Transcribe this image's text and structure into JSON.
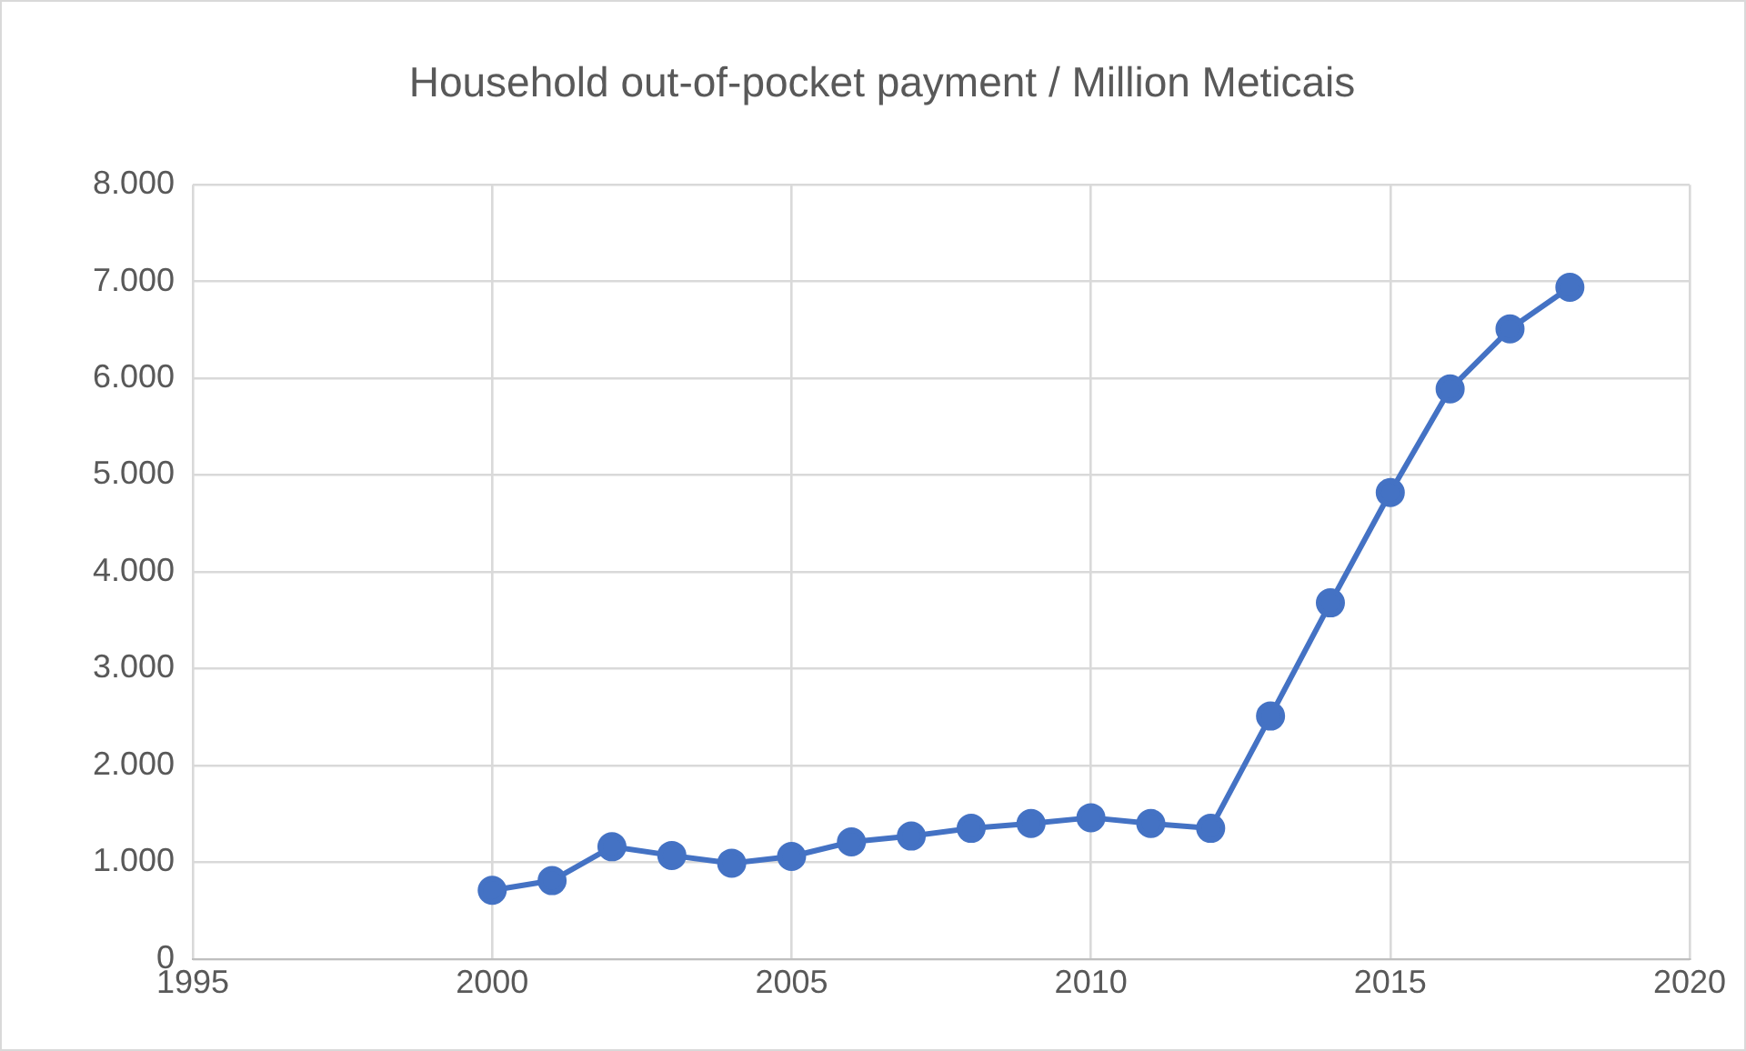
{
  "chart_data": {
    "type": "line",
    "title": "Household out-of-pocket payment / Million Meticais",
    "x": [
      2000,
      2001,
      2002,
      2003,
      2004,
      2005,
      2006,
      2007,
      2008,
      2009,
      2010,
      2011,
      2012,
      2013,
      2014,
      2015,
      2016,
      2017,
      2018
    ],
    "series": [
      {
        "color": "#4472c4",
        "values": [
          710,
          810,
          1160,
          1070,
          990,
          1060,
          1210,
          1270,
          1350,
          1400,
          1460,
          1400,
          1350,
          2510,
          3680,
          4820,
          5890,
          6510,
          6940
        ]
      }
    ],
    "xlim": [
      1995,
      2020
    ],
    "xticks": [
      1995,
      2000,
      2005,
      2010,
      2015,
      2020
    ],
    "ylim": [
      0,
      8000
    ],
    "yticks": [
      0,
      {
        "value": 1000,
        "label": "1.000"
      },
      {
        "value": 2000,
        "label": "2.000"
      },
      {
        "value": 3000,
        "label": "3.000"
      },
      {
        "value": 4000,
        "label": "4.000"
      },
      {
        "value": 5000,
        "label": "5.000"
      },
      {
        "value": 6000,
        "label": "6.000"
      },
      {
        "value": 7000,
        "label": "7.000"
      },
      {
        "value": 8000,
        "label": "8.000"
      }
    ],
    "grid": true,
    "legend": false,
    "marker": "circle",
    "line_style": "solid"
  }
}
